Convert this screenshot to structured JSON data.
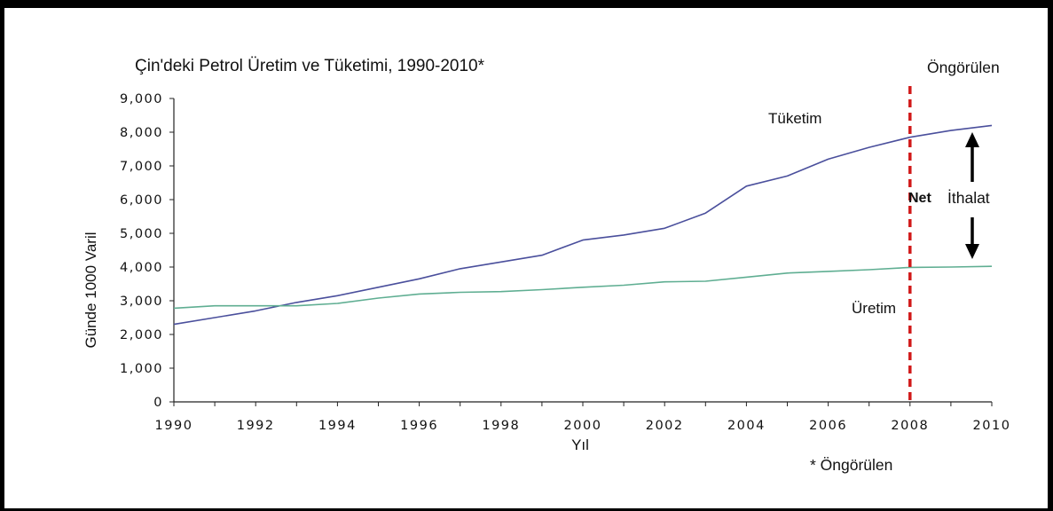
{
  "chart_data": {
    "type": "line",
    "title": "Çin'deki Petrol Üretim ve Tüketimi, 1990-2010*",
    "xlabel": "Yıl",
    "ylabel": "Günde 1000 Varil",
    "xlim": [
      1990,
      2010
    ],
    "ylim": [
      0,
      9000
    ],
    "x_ticks": [
      "1990",
      "1992",
      "1994",
      "1996",
      "1998",
      "2000",
      "2002",
      "2004",
      "2006",
      "2008",
      "2010"
    ],
    "y_ticks": [
      "0",
      "1,000",
      "2,000",
      "3,000",
      "4,000",
      "5,000",
      "6,000",
      "7,000",
      "8,000",
      "9,000"
    ],
    "grid": false,
    "x": [
      1990,
      1991,
      1992,
      1993,
      1994,
      1995,
      1996,
      1997,
      1998,
      1999,
      2000,
      2001,
      2002,
      2003,
      2004,
      2005,
      2006,
      2007,
      2008,
      2009,
      2010
    ],
    "series": [
      {
        "name": "Tüketim",
        "color": "#4a4f9c",
        "values": [
          2300,
          2500,
          2700,
          2950,
          3150,
          3400,
          3650,
          3950,
          4150,
          4350,
          4800,
          4950,
          5150,
          5600,
          6400,
          6700,
          7200,
          7550,
          7850,
          8050,
          8200
        ]
      },
      {
        "name": "Üretim",
        "color": "#5fae92",
        "values": [
          2780,
          2850,
          2850,
          2850,
          2920,
          3080,
          3200,
          3250,
          3270,
          3330,
          3400,
          3460,
          3560,
          3580,
          3700,
          3820,
          3870,
          3920,
          3990,
          4000,
          4020
        ]
      }
    ],
    "forecast_line": {
      "x": 2008,
      "label": "Öngörülen",
      "color": "#d11a1a"
    },
    "net_import_label": {
      "part1": "Net",
      "part2": "İthalat"
    },
    "footnote": "* Öngörülen"
  }
}
